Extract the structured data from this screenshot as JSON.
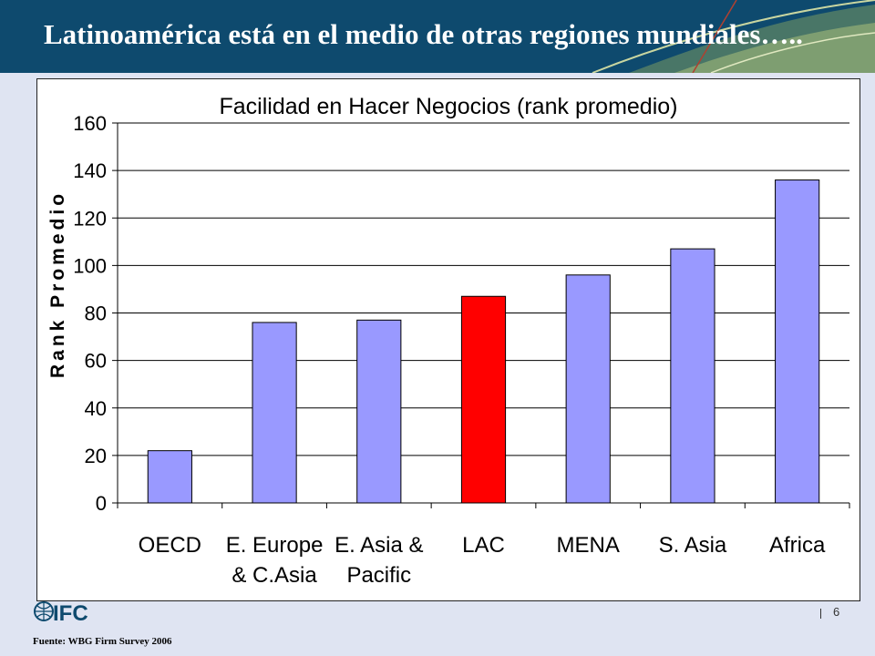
{
  "slide": {
    "title": "Latinoamérica está en el medio de otras regiones mundiales…..",
    "page_number": "6",
    "source": "Fuente: WBG Firm Survey 2006",
    "logo_text": "IFC"
  },
  "colors": {
    "banner": "#0e4a6e",
    "bar_default": "#9999ff",
    "bar_highlight": "#ff0000"
  },
  "chart_data": {
    "type": "bar",
    "title": "Facilidad en Hacer Negocios (rank promedio)",
    "xlabel": "",
    "ylabel": "Rank Promedio",
    "categories": [
      [
        "OECD"
      ],
      [
        "E. Europe",
        "& C.Asia"
      ],
      [
        "E. Asia &",
        "Pacific"
      ],
      [
        "LAC"
      ],
      [
        "MENA"
      ],
      [
        "S. Asia"
      ],
      [
        "Africa"
      ]
    ],
    "values": [
      22,
      76,
      77,
      87,
      96,
      107,
      136
    ],
    "highlight_index": 3,
    "ylim": [
      0,
      160
    ],
    "yticks": [
      0,
      20,
      40,
      60,
      80,
      100,
      120,
      140,
      160
    ],
    "grid": true,
    "legend": "none"
  }
}
